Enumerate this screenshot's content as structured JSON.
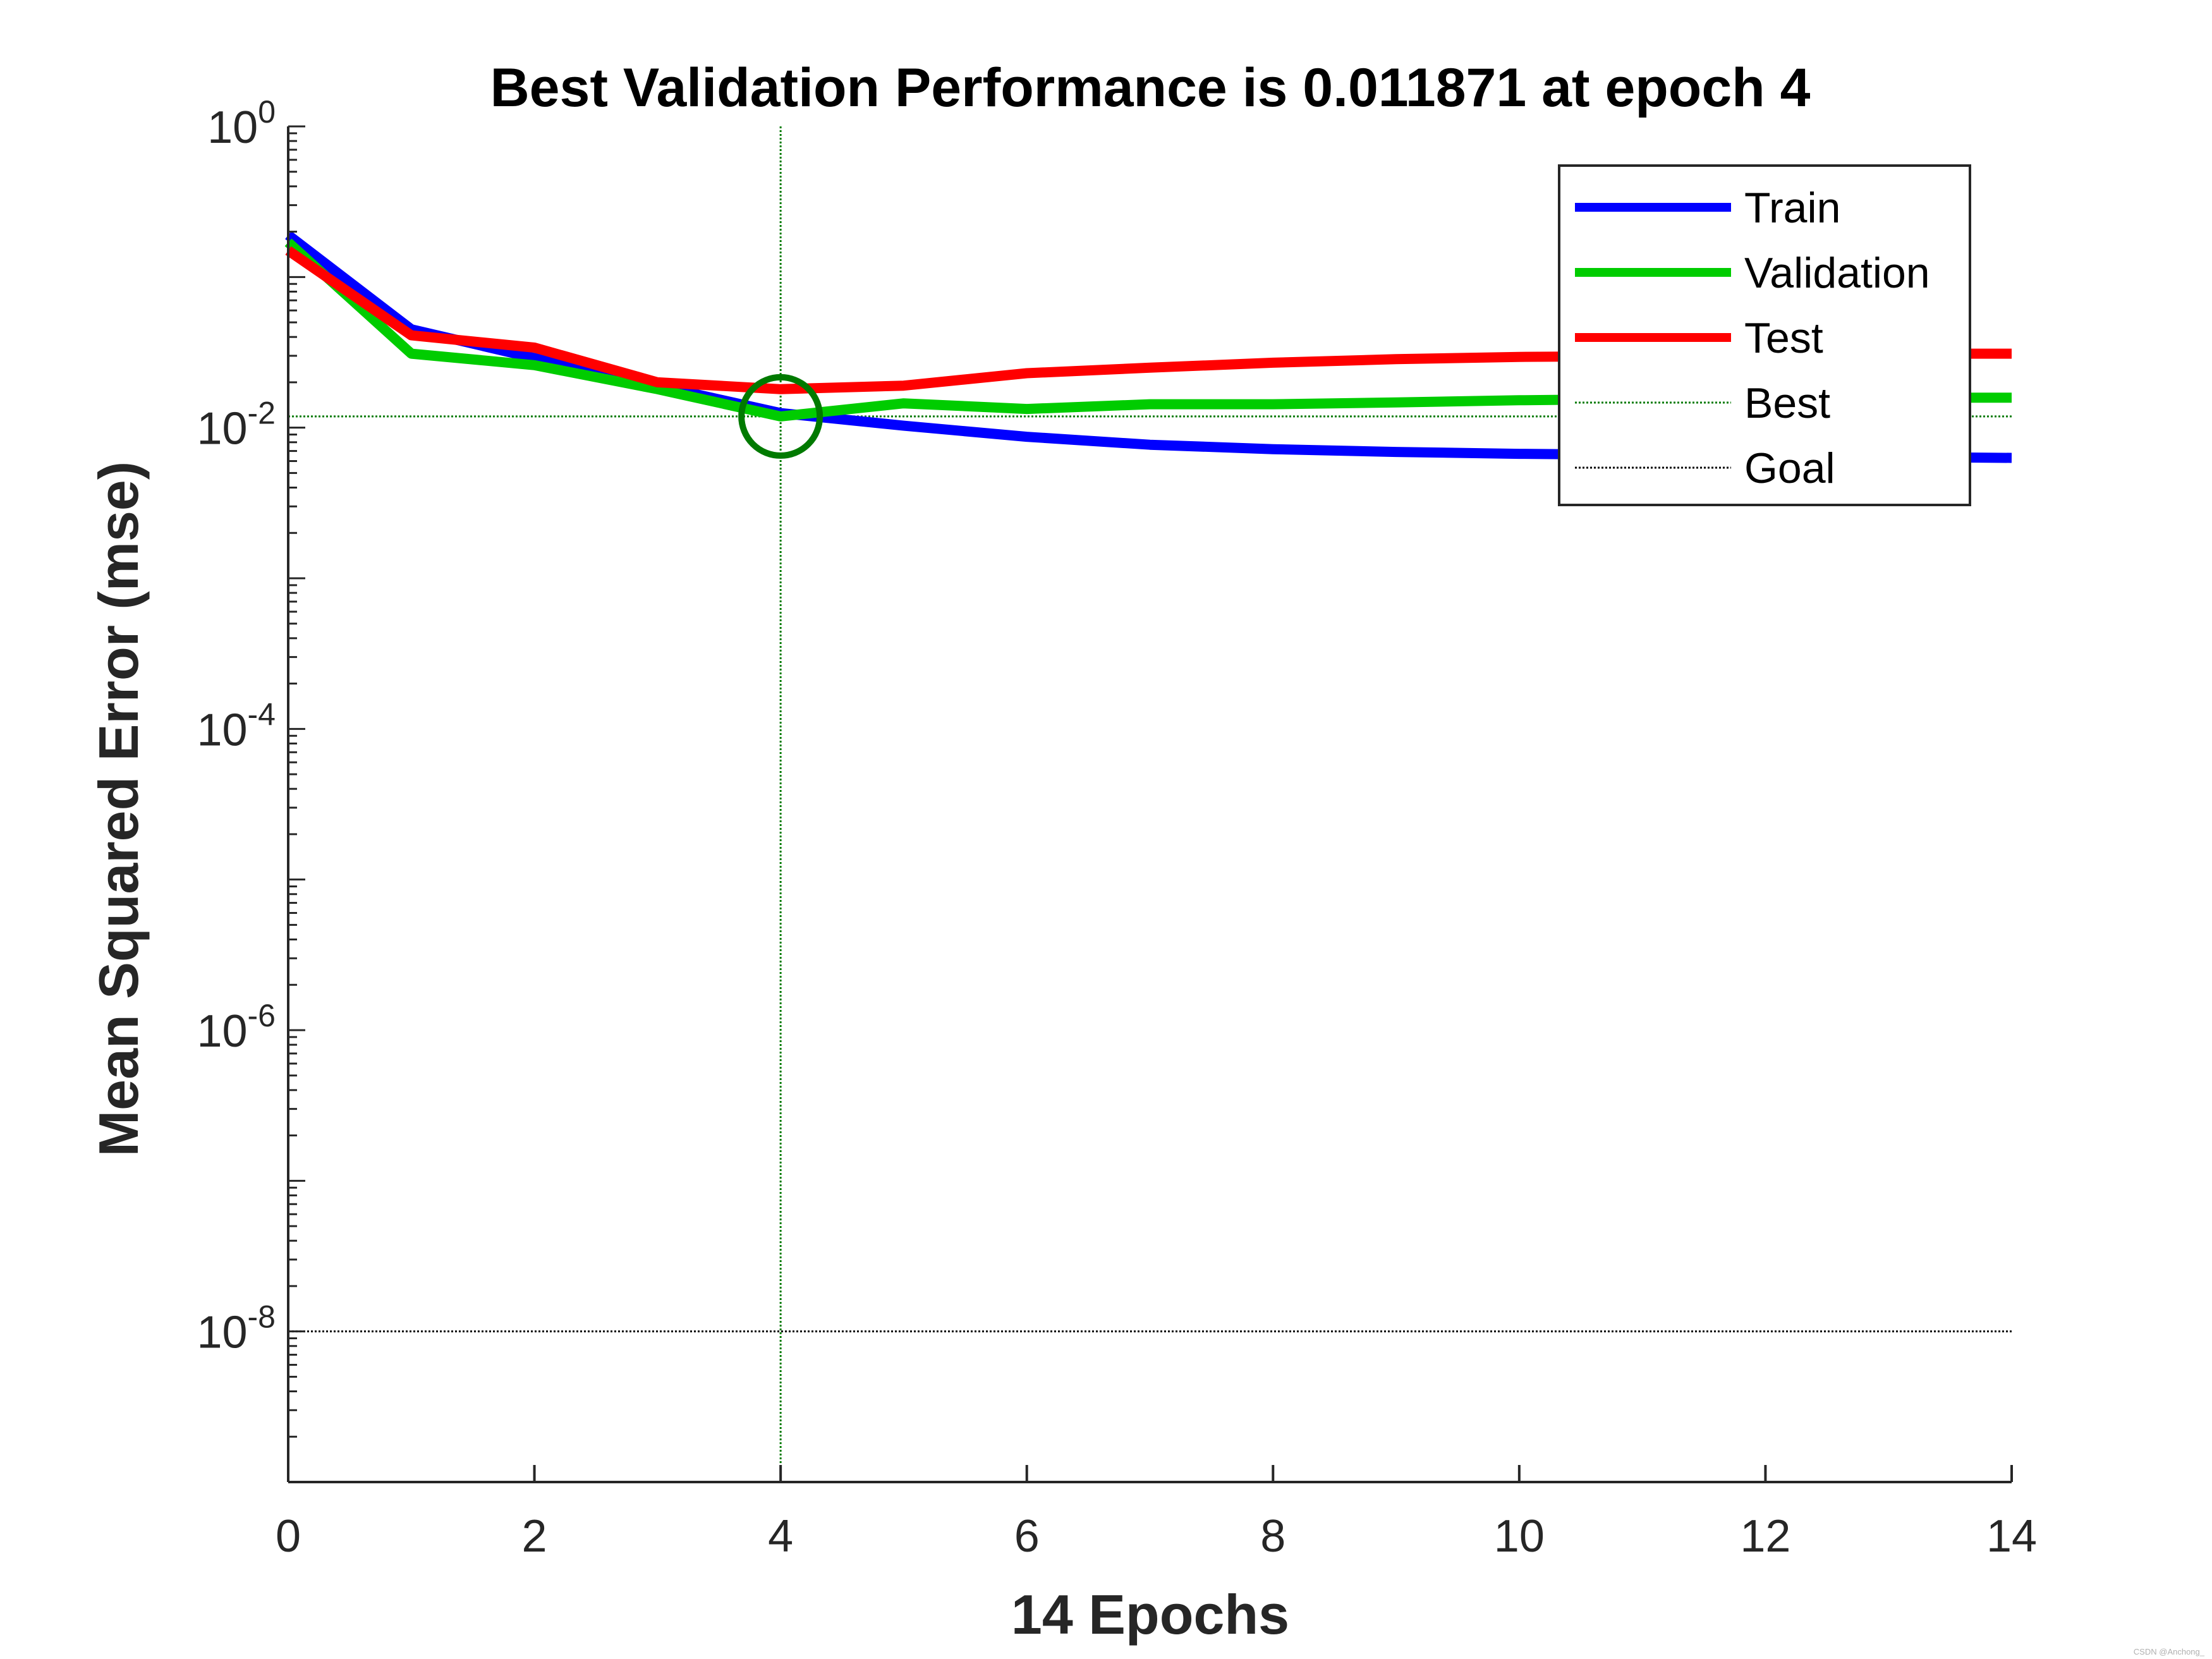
{
  "chart_data": {
    "type": "line",
    "title": "Best Validation Performance is 0.011871 at epoch 4",
    "xlabel": "14 Epochs",
    "ylabel": "Mean Squared Error  (mse)",
    "xlim": [
      0,
      14
    ],
    "ylim_log10": [
      -9,
      0
    ],
    "yscale": "log",
    "x_ticks": [
      "0",
      "2",
      "4",
      "6",
      "8",
      "10",
      "12",
      "14"
    ],
    "y_ticks": [
      {
        "base": "10",
        "exp": "0"
      },
      {
        "base": "10",
        "exp": "-2"
      },
      {
        "base": "10",
        "exp": "-4"
      },
      {
        "base": "10",
        "exp": "-6"
      },
      {
        "base": "10",
        "exp": "-8"
      }
    ],
    "x": [
      0,
      1,
      2,
      3,
      4,
      5,
      6,
      7,
      8,
      9,
      10,
      11,
      12,
      13,
      14
    ],
    "series": [
      {
        "name": "Train",
        "color": "#0000ff",
        "values": [
          0.19,
          0.045,
          0.029,
          0.019,
          0.0125,
          0.0103,
          0.0087,
          0.0077,
          0.0072,
          0.0069,
          0.0067,
          0.0066,
          0.0065,
          0.0064,
          0.0063
        ]
      },
      {
        "name": "Validation",
        "color": "#00cc00",
        "values": [
          0.17,
          0.031,
          0.026,
          0.018,
          0.011871,
          0.0145,
          0.0133,
          0.0143,
          0.0143,
          0.0147,
          0.0152,
          0.0155,
          0.0157,
          0.0158,
          0.0158
        ]
      },
      {
        "name": "Test",
        "color": "#ff0000",
        "values": [
          0.15,
          0.041,
          0.034,
          0.02,
          0.018,
          0.019,
          0.023,
          0.025,
          0.027,
          0.0285,
          0.0295,
          0.0298,
          0.0305,
          0.031,
          0.031
        ]
      }
    ],
    "best": {
      "name": "Best",
      "epoch": 4,
      "value": 0.011871,
      "color": "#007a00"
    },
    "goal": {
      "name": "Goal",
      "value": 1e-08,
      "color": "#000000"
    },
    "legend": [
      "Train",
      "Validation",
      "Test",
      "Best",
      "Goal"
    ],
    "legend_position": "top-right"
  },
  "watermark": "CSDN @Anchong_"
}
